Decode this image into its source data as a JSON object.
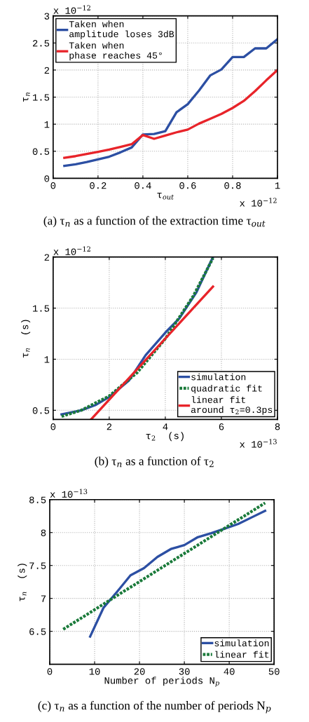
{
  "chart_data": [
    {
      "type": "line",
      "title": "(a) τ$_{n}$ as a function of the extraction time τ$_{out}$",
      "xlabel": "τ$_{out}$",
      "ylabel": "τ$_{n}$",
      "annotations": [
        "x 10$^{−12}$",
        "x 10$^{−12}$"
      ],
      "x": [
        0.05,
        0.1,
        0.15,
        0.2,
        0.25,
        0.3,
        0.35,
        0.4,
        0.45,
        0.5,
        0.55,
        0.6,
        0.65,
        0.7,
        0.75,
        0.8,
        0.85,
        0.9,
        0.95,
        1.0
      ],
      "series": [
        {
          "name": "Taken when\namplitude loses 3dB",
          "color": "#2c4fa3",
          "values": [
            0.23,
            0.26,
            0.3,
            0.35,
            0.4,
            0.48,
            0.57,
            0.81,
            0.82,
            0.87,
            1.22,
            1.37,
            1.62,
            1.9,
            2.01,
            2.24,
            2.24,
            2.4,
            2.4,
            2.57
          ]
        },
        {
          "name": "Taken when\nphase reaches 45°",
          "color": "#e8242a",
          "values": [
            0.38,
            0.41,
            0.45,
            0.49,
            0.53,
            0.58,
            0.63,
            0.8,
            0.73,
            0.79,
            0.85,
            0.9,
            1.01,
            1.1,
            1.19,
            1.3,
            1.43,
            1.61,
            1.81,
            2.0
          ]
        }
      ],
      "xlim": [
        0,
        1
      ],
      "xticks": [
        0,
        0.2,
        0.4,
        0.6,
        0.8,
        1
      ],
      "ylim": [
        0,
        3
      ],
      "yticks": [
        0,
        0.5,
        1,
        1.5,
        2,
        2.5,
        3
      ],
      "grid": true,
      "legend": "top left",
      "line_style": "solid"
    },
    {
      "type": "line",
      "title": "(b) τ$_{n}$ as a function of τ$_{2}$",
      "xlabel": "τ$_{2}$  (s)",
      "ylabel": "τ$_{n}$  (s)",
      "annotations": [
        "x 10$^{−12}$",
        "x 10$^{−13}$"
      ],
      "series": [
        {
          "name": "simulation",
          "color": "#2c4fa3",
          "x": [
            0.3,
            1,
            1.5,
            2,
            2.7,
            3.3,
            4,
            4.5,
            5.1,
            5.7
          ],
          "values": [
            0.46,
            0.5,
            0.55,
            0.63,
            0.79,
            1.04,
            1.26,
            1.4,
            1.65,
            2.0
          ]
        },
        {
          "name": "quadratic fit",
          "color": "#1a7a3a",
          "line_style": "dotted",
          "x": [
            0.3,
            1,
            2,
            3,
            4,
            5,
            5.7
          ],
          "values": [
            0.44,
            0.5,
            0.64,
            0.87,
            1.2,
            1.62,
            1.99
          ]
        },
        {
          "name": "linear fit\naround τ$_{2}$=0.3ps",
          "color": "#e8242a",
          "x": [
            1.35,
            5.7
          ],
          "values": [
            0.41,
            1.71
          ]
        }
      ],
      "xlim": [
        0,
        8
      ],
      "xticks": [
        0,
        2,
        4,
        6,
        8
      ],
      "ylim": [
        0.41,
        2
      ],
      "yticks": [
        0.5,
        1,
        1.5,
        2
      ],
      "grid": true,
      "legend": "bottom right",
      "line_style": "solid"
    },
    {
      "type": "line",
      "title": "(c) τ$_{n}$ as a function of the number of periods N$_{p}$",
      "xlabel": "Number of periods N$_{p}$",
      "ylabel": "τ$_{n}$  (s)",
      "annotations": [
        "x 10$^{−13}$"
      ],
      "series": [
        {
          "name": "simulation",
          "color": "#2c4fa3",
          "x": [
            9,
            12,
            15,
            18,
            21,
            24,
            27,
            30,
            33,
            36,
            39,
            42,
            45,
            48
          ],
          "values": [
            6.42,
            6.86,
            7.1,
            7.35,
            7.46,
            7.63,
            7.75,
            7.81,
            7.93,
            7.99,
            8.06,
            8.13,
            8.23,
            8.33
          ]
        },
        {
          "name": "linear fit",
          "color": "#1a7a3a",
          "line_style": "dotted",
          "x": [
            3,
            48
          ],
          "values": [
            6.53,
            8.45
          ]
        }
      ],
      "xlim": [
        0,
        50
      ],
      "xticks": [
        0,
        10,
        20,
        30,
        40,
        50
      ],
      "ylim": [
        6,
        8.5
      ],
      "yticks": [
        6.5,
        7,
        7.5,
        8,
        8.5
      ],
      "grid": true,
      "legend": "bottom right",
      "line_style": "solid"
    }
  ]
}
